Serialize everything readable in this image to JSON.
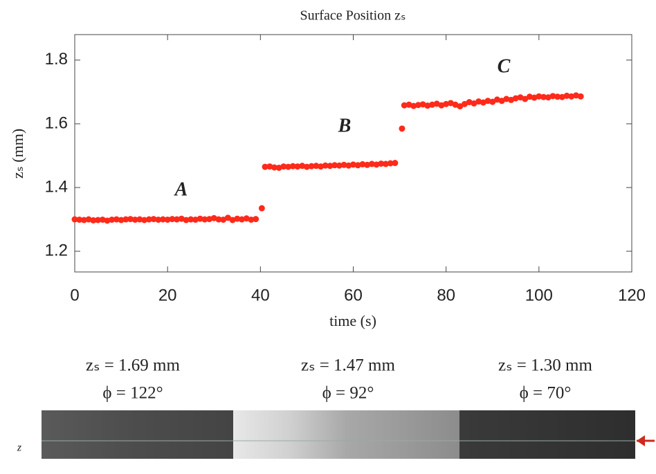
{
  "chart_data": {
    "type": "scatter",
    "title": "Surface Position zₛ",
    "x_label": "time (s)",
    "y_label": "zₛ (mm)",
    "color": "#ff2a1a",
    "x": [
      0,
      1,
      2,
      3,
      4,
      5,
      6,
      7,
      8,
      9,
      10,
      11,
      12,
      13,
      14,
      15,
      16,
      17,
      18,
      19,
      20,
      21,
      22,
      23,
      24,
      25,
      26,
      27,
      28,
      29,
      30,
      31,
      32,
      33,
      34,
      35,
      36,
      37,
      38,
      39,
      40.3,
      41,
      42,
      43,
      44,
      45,
      46,
      47,
      48,
      49,
      50,
      51,
      52,
      53,
      54,
      55,
      56,
      57,
      58,
      59,
      60,
      61,
      62,
      63,
      64,
      65,
      66,
      67,
      68,
      69,
      70.5,
      71,
      72,
      73,
      74,
      75,
      76,
      77,
      78,
      79,
      80,
      81,
      82,
      83,
      84,
      85,
      86,
      87,
      88,
      89,
      90,
      91,
      92,
      93,
      94,
      95,
      96,
      97,
      98,
      99,
      100,
      101,
      102,
      103,
      104,
      105,
      106,
      107,
      108,
      109
    ],
    "values": [
      1.3,
      1.299,
      1.298,
      1.3,
      1.297,
      1.298,
      1.299,
      1.296,
      1.299,
      1.3,
      1.298,
      1.3,
      1.301,
      1.299,
      1.3,
      1.298,
      1.3,
      1.301,
      1.299,
      1.3,
      1.299,
      1.301,
      1.3,
      1.302,
      1.298,
      1.3,
      1.299,
      1.302,
      1.3,
      1.301,
      1.304,
      1.3,
      1.299,
      1.305,
      1.298,
      1.302,
      1.3,
      1.303,
      1.299,
      1.301,
      1.335,
      1.465,
      1.466,
      1.463,
      1.462,
      1.466,
      1.465,
      1.467,
      1.466,
      1.468,
      1.465,
      1.467,
      1.468,
      1.466,
      1.469,
      1.468,
      1.47,
      1.469,
      1.471,
      1.469,
      1.472,
      1.47,
      1.473,
      1.471,
      1.474,
      1.472,
      1.475,
      1.474,
      1.476,
      1.477,
      1.585,
      1.658,
      1.66,
      1.656,
      1.659,
      1.661,
      1.657,
      1.66,
      1.663,
      1.658,
      1.662,
      1.665,
      1.66,
      1.655,
      1.662,
      1.668,
      1.664,
      1.67,
      1.667,
      1.672,
      1.669,
      1.676,
      1.672,
      1.678,
      1.675,
      1.68,
      1.683,
      1.678,
      1.685,
      1.682,
      1.686,
      1.684,
      1.683,
      1.687,
      1.685,
      1.684,
      1.688,
      1.686,
      1.689,
      1.686
    ],
    "xlim": [
      0,
      120
    ],
    "xticks": [
      0,
      20,
      40,
      60,
      80,
      100,
      120
    ],
    "ylim": [
      1.135,
      1.88
    ],
    "yticks": [
      1.2,
      1.4,
      1.6,
      1.8
    ],
    "annotations": [
      "A",
      "B",
      "C"
    ]
  },
  "panels": [
    {
      "zs": "zₛ = 1.69 mm",
      "phi": "ϕ = 122°"
    },
    {
      "zs": "zₛ = 1.47 mm",
      "phi": "ϕ = 92°"
    },
    {
      "zs": "zₛ = 1.30 mm",
      "phi": "ϕ = 70°"
    }
  ],
  "axis_mark": "z"
}
